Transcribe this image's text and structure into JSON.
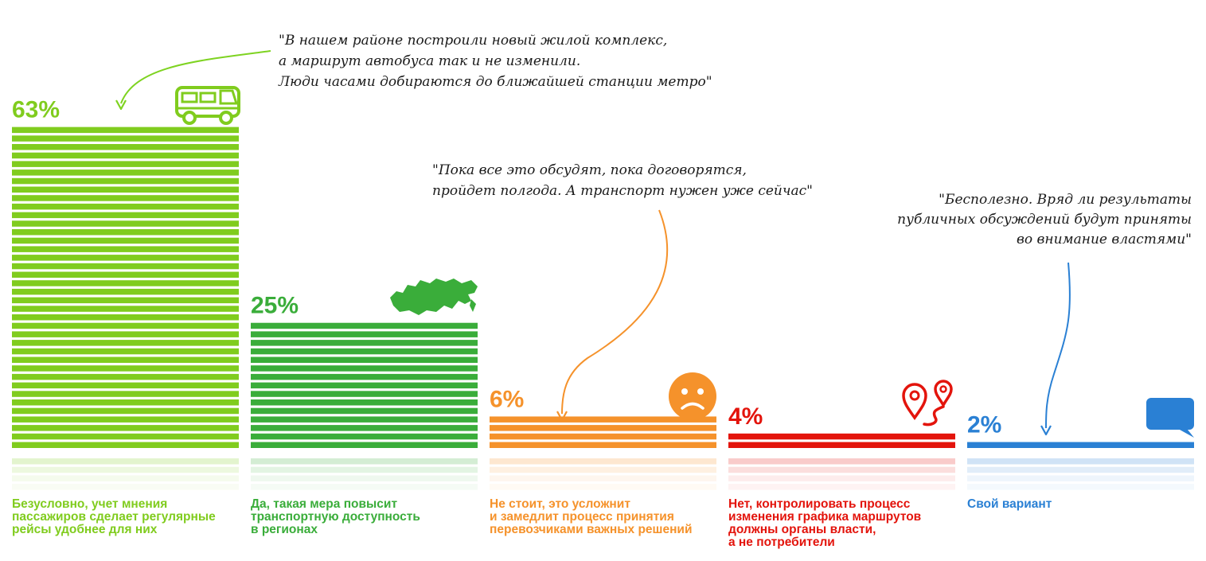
{
  "chart_data": {
    "type": "bar",
    "unit": "%",
    "categories": [
      {
        "key": "a",
        "value": 63,
        "label": "63%",
        "color": "#80cc1e",
        "icon": "bus-icon",
        "caption": [
          "Безусловно, учет мнения",
          "пассажиров сделает регулярные",
          "рейсы удобнее для них"
        ]
      },
      {
        "key": "b",
        "value": 25,
        "label": "25%",
        "color": "#3aad3a",
        "icon": "russia-map-icon",
        "caption": [
          "Да, такая мера повысит",
          "транспортную доступность",
          "в регионах"
        ]
      },
      {
        "key": "c",
        "value": 6,
        "label": "6%",
        "color": "#f5922b",
        "icon": "sad-face-icon",
        "caption": [
          "Не стоит, это усложнит",
          "и замедлит процесс принятия",
          "перевозчиками важных решений"
        ]
      },
      {
        "key": "d",
        "value": 4,
        "label": "4%",
        "color": "#e3140c",
        "icon": "route-pins-icon",
        "caption": [
          "Нет, контролировать процесс",
          "изменения графика маршрутов",
          "должны органы власти,",
          "а не потребители"
        ]
      },
      {
        "key": "e",
        "value": 2,
        "label": "2%",
        "color": "#2a80d4",
        "icon": "chat-bubble-icon",
        "caption": [
          "Свой вариант"
        ]
      }
    ],
    "quotes": [
      {
        "key": "q1",
        "color": "#7ed321",
        "lines": [
          "\"В нашем районе построили новый жилой комплекс,",
          "а маршрут автобуса так и не изменили.",
          "Люди часами добираются до ближайшей станции метро\""
        ]
      },
      {
        "key": "q2",
        "color": "#f5922b",
        "lines": [
          "\"Пока все это обсудят, пока договорятся,",
          "пройдет полгода. А транспорт нужен уже сейчас\""
        ]
      },
      {
        "key": "q3",
        "color": "#2a80d4",
        "lines": [
          "\"Бесполезно. Вряд ли результаты",
          "публичных обсуждений будут приняты",
          "во внимание властями\""
        ]
      }
    ]
  }
}
